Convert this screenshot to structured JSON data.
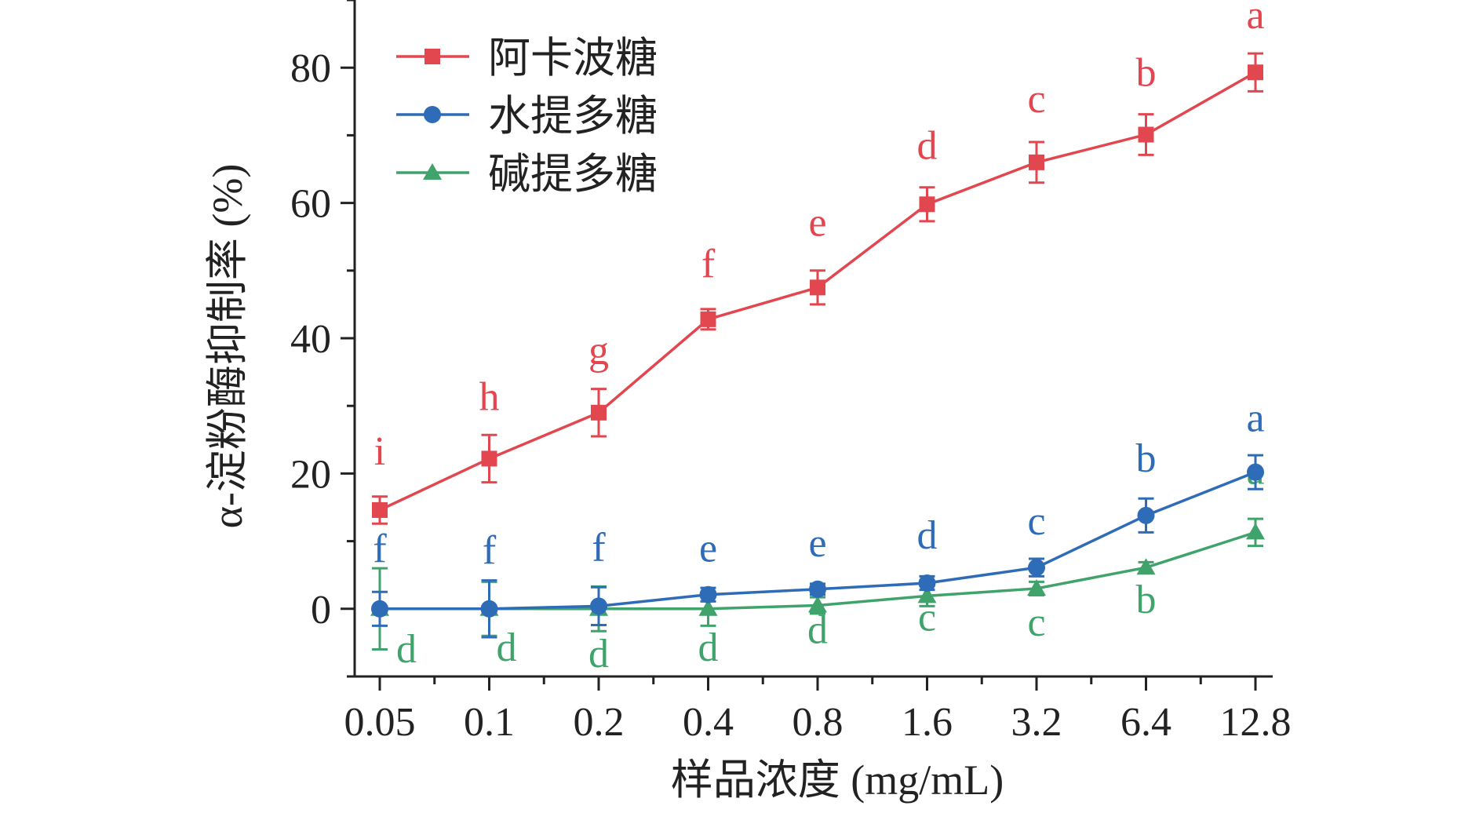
{
  "chart_data": {
    "type": "line",
    "categories": [
      "0.05",
      "0.1",
      "0.2",
      "0.4",
      "0.8",
      "1.6",
      "3.2",
      "6.4",
      "12.8"
    ],
    "xlabel": "样品浓度 (mg/mL)",
    "ylabel": "α-淀粉酶抑制率 (%)",
    "ylim": [
      -10,
      90
    ],
    "yticks": [
      0,
      20,
      40,
      60,
      80
    ],
    "legend_position": "top-left",
    "series": [
      {
        "name": "阿卡波糖",
        "color": "#e2464f",
        "marker": "square",
        "values": [
          14.6,
          22.2,
          29.0,
          42.8,
          47.5,
          59.8,
          66.0,
          70.1,
          79.3
        ],
        "errors": [
          2.0,
          3.5,
          3.5,
          1.5,
          2.5,
          2.5,
          3.0,
          3.0,
          2.8
        ],
        "labels": [
          "i",
          "h",
          "g",
          "f",
          "e",
          "d",
          "c",
          "b",
          "a"
        ]
      },
      {
        "name": "水提多糖",
        "color": "#2e6cb8",
        "marker": "circle",
        "values": [
          0.0,
          0.0,
          0.4,
          2.1,
          2.9,
          3.8,
          6.1,
          13.8,
          20.2
        ],
        "errors": [
          2.5,
          4.2,
          2.8,
          1.0,
          0.8,
          1.0,
          1.3,
          2.5,
          2.5
        ],
        "labels": [
          "f",
          "f",
          "f",
          "e",
          "e",
          "d",
          "c",
          "b",
          "a"
        ]
      },
      {
        "name": "碱提多糖",
        "color": "#3fa36b",
        "marker": "triangle",
        "values": [
          0.0,
          0.0,
          0.0,
          0.0,
          0.5,
          1.9,
          3.0,
          6.1,
          11.3
        ],
        "errors": [
          6.0,
          4.0,
          3.3,
          2.5,
          1.2,
          1.5,
          1.0,
          0.8,
          2.0
        ],
        "labels": [
          "d",
          "d",
          "d",
          "d",
          "d",
          "c",
          "c",
          "b",
          "a"
        ]
      }
    ]
  }
}
